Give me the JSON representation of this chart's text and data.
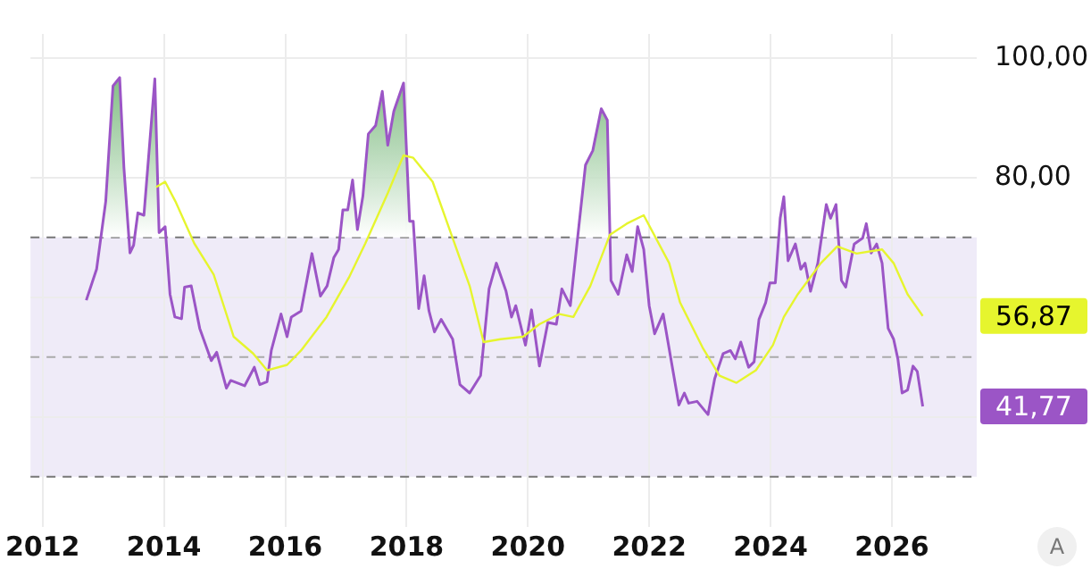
{
  "chart_data": {
    "type": "line",
    "xlim": [
      2011.8,
      2027.4
    ],
    "xticks": [
      2012,
      2014,
      2016,
      2018,
      2020,
      2022,
      2024,
      2026
    ],
    "ylim": [
      24,
      104
    ],
    "yticks": [
      {
        "value": 100,
        "label": "100,00"
      },
      {
        "value": 80,
        "label": "80,00"
      },
      {
        "value": 60,
        "label": null
      },
      {
        "value": 40,
        "label": null
      }
    ],
    "grid": true,
    "legend": false,
    "marker": "none",
    "line_style": "solid",
    "bands": [
      {
        "axis": "y",
        "from": 30,
        "to": 70,
        "color": "#efebf8"
      }
    ],
    "ref_lines": [
      {
        "axis": "y",
        "value": 70,
        "color": "#777777",
        "line_style": "dashed"
      },
      {
        "axis": "y",
        "value": 50,
        "color": "#aaaaaa",
        "line_style": "dashed"
      },
      {
        "axis": "y",
        "value": 30,
        "color": "#777777",
        "line_style": "dashed"
      }
    ],
    "series": [
      {
        "color": "#9b55c6",
        "upper": [
          null,
          64.7,
          76,
          95.3,
          96.7,
          81.7,
          67.4,
          68.7,
          74.1,
          73.7,
          96.5,
          70.8,
          71.8,
          60.5,
          56.7,
          null,
          null,
          null,
          null,
          null,
          null,
          null,
          null,
          null,
          null,
          null,
          null,
          null,
          null,
          null,
          null,
          null,
          null,
          null,
          null,
          66.6,
          68,
          74.6,
          74.6,
          79.6,
          71.3,
          76.9,
          87.3,
          88.7,
          94.4,
          85.4,
          91.1,
          95.8,
          72.7,
          72.7,
          58.1,
          null,
          null,
          null,
          null,
          null,
          null,
          null,
          null,
          null,
          null,
          null,
          null,
          null,
          null,
          null,
          null,
          null,
          null,
          null,
          58.6,
          71.8,
          82.1,
          84.5,
          91.5,
          89.6,
          62.8,
          null,
          null,
          null,
          null,
          null,
          null,
          null,
          null,
          null,
          null,
          null,
          null,
          null,
          null,
          null,
          null,
          null,
          null,
          null,
          null,
          null,
          null,
          null,
          62.4,
          73.2,
          76.8,
          66.1,
          68.9,
          64.7,
          65.7,
          61,
          65.7,
          75.5,
          73.2,
          75.5,
          62.8,
          61.7,
          68.9,
          69.9,
          72.3,
          67.4,
          68.9,
          null,
          null,
          null,
          null,
          null,
          null,
          null,
          null,
          null
        ],
        "lower": [
          null,
          70,
          70,
          70,
          70,
          70,
          70,
          70,
          70,
          70,
          70,
          70,
          70,
          70,
          70,
          null,
          null,
          null,
          null,
          null,
          null,
          null,
          null,
          null,
          null,
          null,
          null,
          null,
          null,
          null,
          null,
          null,
          null,
          null,
          null,
          70,
          70,
          70,
          70,
          70,
          70,
          70,
          70,
          70,
          70,
          70,
          70,
          70,
          70,
          70,
          70,
          null,
          null,
          null,
          null,
          null,
          null,
          null,
          null,
          null,
          null,
          null,
          null,
          null,
          null,
          null,
          null,
          null,
          null,
          null,
          70,
          70,
          70,
          70,
          70,
          70,
          70,
          null,
          null,
          null,
          null,
          null,
          null,
          null,
          null,
          null,
          null,
          null,
          null,
          null,
          null,
          null,
          null,
          null,
          null,
          null,
          null,
          null,
          null,
          null,
          70,
          70,
          70,
          70,
          70,
          70,
          70,
          70,
          70,
          70,
          70,
          70,
          70,
          70,
          70,
          70,
          70,
          70,
          70,
          null,
          null,
          null,
          null,
          null,
          null,
          null,
          null,
          null
        ],
        "x": [
          2012.72,
          2012.89,
          2013.04,
          2013.16,
          2013.27,
          2013.34,
          2013.44,
          2013.5,
          2013.57,
          2013.67,
          2013.85,
          2013.92,
          2014.02,
          2014.1,
          2014.18,
          2014.29,
          2014.34,
          2014.45,
          2014.59,
          2014.78,
          2014.87,
          2015.03,
          2015.1,
          2015.33,
          2015.49,
          2015.58,
          2015.7,
          2015.77,
          2015.93,
          2016.03,
          2016.1,
          2016.26,
          2016.44,
          2016.58,
          2016.69,
          2016.8,
          2016.88,
          2016.95,
          2017.03,
          2017.11,
          2017.19,
          2017.28,
          2017.37,
          2017.49,
          2017.6,
          2017.69,
          2017.79,
          2017.95,
          2018.05,
          2018.11,
          2018.2,
          2018.29,
          2018.37,
          2018.46,
          2018.57,
          2018.76,
          2018.88,
          2019.04,
          2019.22,
          2019.36,
          2019.48,
          2019.64,
          2019.73,
          2019.8,
          2019.96,
          2020.06,
          2020.19,
          2020.33,
          2020.47,
          2020.56,
          2020.7,
          2020.84,
          2020.95,
          2021.07,
          2021.21,
          2021.31,
          2021.37,
          2021.49,
          2021.63,
          2021.72,
          2021.81,
          2021.91,
          2022,
          2022.09,
          2022.23,
          2022.49,
          2022.58,
          2022.65,
          2022.79,
          2022.97,
          2023.08,
          2023.22,
          2023.34,
          2023.42,
          2023.51,
          2023.64,
          2023.73,
          2023.81,
          2023.92,
          2023.99,
          2024.08,
          2024.16,
          2024.22,
          2024.29,
          2024.41,
          2024.5,
          2024.57,
          2024.66,
          2024.78,
          2024.92,
          2024.99,
          2025.08,
          2025.17,
          2025.24,
          2025.38,
          2025.52,
          2025.58,
          2025.66,
          2025.75,
          2025.84,
          2025.94,
          2026.03,
          2026.1,
          2026.17,
          2026.26,
          2026.35,
          2026.42,
          2026.51
        ],
        "values": [
          59.5,
          64.7,
          76,
          95.3,
          96.7,
          81.7,
          67.4,
          68.7,
          74.1,
          73.7,
          96.5,
          70.8,
          71.8,
          60.5,
          56.7,
          56.4,
          61.7,
          61.9,
          54.8,
          49.4,
          50.8,
          44.8,
          46.1,
          45.2,
          48.3,
          45.4,
          45.9,
          51.1,
          57.2,
          53.4,
          56.7,
          57.7,
          67.3,
          60.2,
          61.9,
          66.6,
          68,
          74.6,
          74.6,
          79.6,
          71.3,
          76.9,
          87.3,
          88.7,
          94.4,
          85.4,
          91.1,
          95.8,
          72.7,
          72.7,
          58.1,
          63.6,
          57.7,
          54.2,
          56.3,
          53,
          45.4,
          44,
          46.9,
          61.4,
          65.7,
          61,
          56.7,
          58.6,
          52,
          57.9,
          48.5,
          55.8,
          55.5,
          61.4,
          58.6,
          71.8,
          82.1,
          84.5,
          91.5,
          89.6,
          62.8,
          60.5,
          67.1,
          64.3,
          71.8,
          68,
          58.6,
          53.9,
          57.2,
          42,
          44,
          42.3,
          42.6,
          40.4,
          46.4,
          50.6,
          51.1,
          49.7,
          52.5,
          48.3,
          49.2,
          56.3,
          59.1,
          62.4,
          62.4,
          73.2,
          76.8,
          66.1,
          68.9,
          64.7,
          65.7,
          61,
          65.7,
          75.5,
          73.2,
          75.5,
          62.8,
          61.7,
          68.9,
          69.9,
          72.3,
          67.4,
          68.9,
          65.7,
          54.8,
          53,
          49.7,
          44,
          44.5,
          48.5,
          47.6,
          41.77
        ]
      },
      {
        "color": "#e6f52e",
        "x": [
          2013.87,
          2014.02,
          2014.19,
          2014.5,
          2014.82,
          2015.15,
          2015.47,
          2015.7,
          2016.03,
          2016.26,
          2016.68,
          2017.05,
          2017.32,
          2017.69,
          2017.95,
          2018.11,
          2018.43,
          2018.71,
          2019.04,
          2019.27,
          2019.55,
          2019.92,
          2020.19,
          2020.52,
          2020.75,
          2021.03,
          2021.35,
          2021.63,
          2021.91,
          2022.33,
          2022.51,
          2022.88,
          2023.16,
          2023.44,
          2023.76,
          2024.04,
          2024.22,
          2024.45,
          2024.83,
          2025.1,
          2025.42,
          2025.84,
          2026.03,
          2026.26,
          2026.51
        ],
        "values": [
          78.4,
          79.3,
          76,
          69,
          63.8,
          53.4,
          50.6,
          47.8,
          48.7,
          51.1,
          56.7,
          63.3,
          69,
          77.4,
          83.7,
          83.3,
          79.3,
          71.3,
          61.9,
          52.5,
          53,
          53.4,
          55.5,
          57.2,
          56.7,
          61.9,
          70.4,
          72.3,
          73.7,
          65.7,
          59.1,
          51.6,
          46.9,
          45.7,
          47.8,
          52,
          56.7,
          60.5,
          65.7,
          68.5,
          67.3,
          68,
          65.7,
          60.5,
          56.87
        ]
      }
    ],
    "annotations": [
      "41,77",
      "56,87",
      "A"
    ]
  }
}
